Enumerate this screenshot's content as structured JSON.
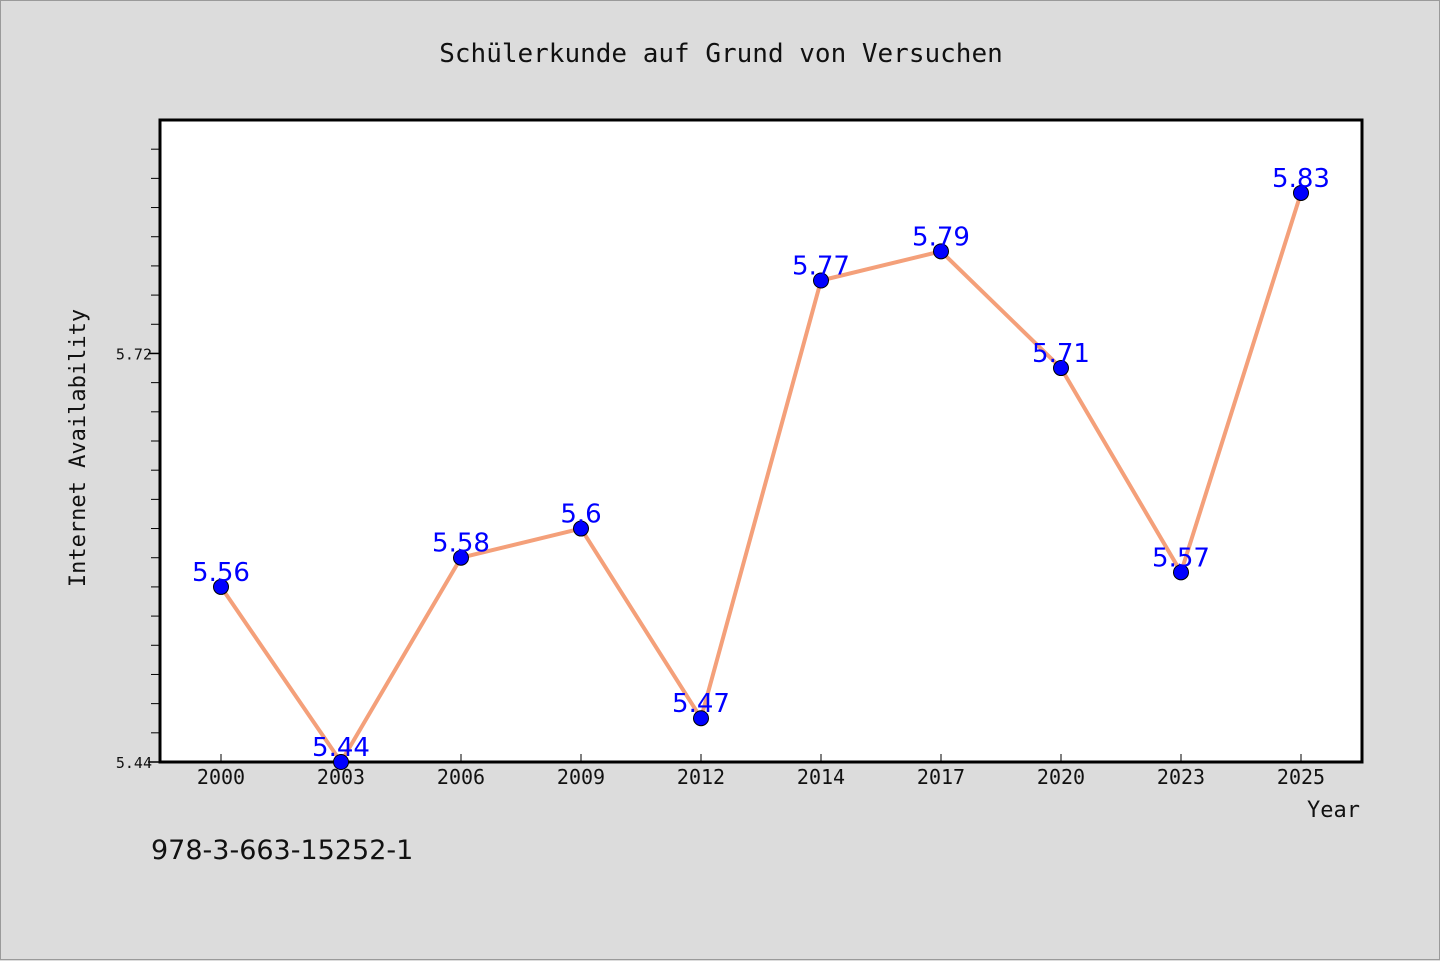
{
  "chart_data": {
    "type": "line",
    "title": "Schülerkunde auf Grund von Versuchen",
    "xlabel": "Year",
    "ylabel": "Internet Availability",
    "categories": [
      "2000",
      "2003",
      "2006",
      "2009",
      "2012",
      "2014",
      "2017",
      "2020",
      "2023",
      "2025"
    ],
    "series": [
      {
        "values": [
          5.56,
          5.44,
          5.58,
          5.6,
          5.47,
          5.77,
          5.79,
          5.71,
          5.57,
          5.83
        ],
        "labels": [
          "5.56",
          "5.44",
          "5.58",
          "5.6",
          "5.47",
          "5.77",
          "5.79",
          "5.71",
          "5.57",
          "5.83"
        ],
        "line_color": "#f4a07a",
        "marker_color": "#0000ff",
        "label_color": "#0000ff"
      }
    ],
    "ylim": [
      5.44,
      5.88
    ],
    "yticks_labeled": [
      "5.44",
      "5.72"
    ],
    "yticks_labeled_values": [
      5.44,
      5.72
    ],
    "yminor_step": 0.02,
    "grid": false,
    "legend": "none"
  },
  "footer": {
    "identifier": "978-3-663-15252-1"
  },
  "colors": {
    "background": "#dcdcdc",
    "plot_background": "#ffffff",
    "axis": "#000000"
  }
}
